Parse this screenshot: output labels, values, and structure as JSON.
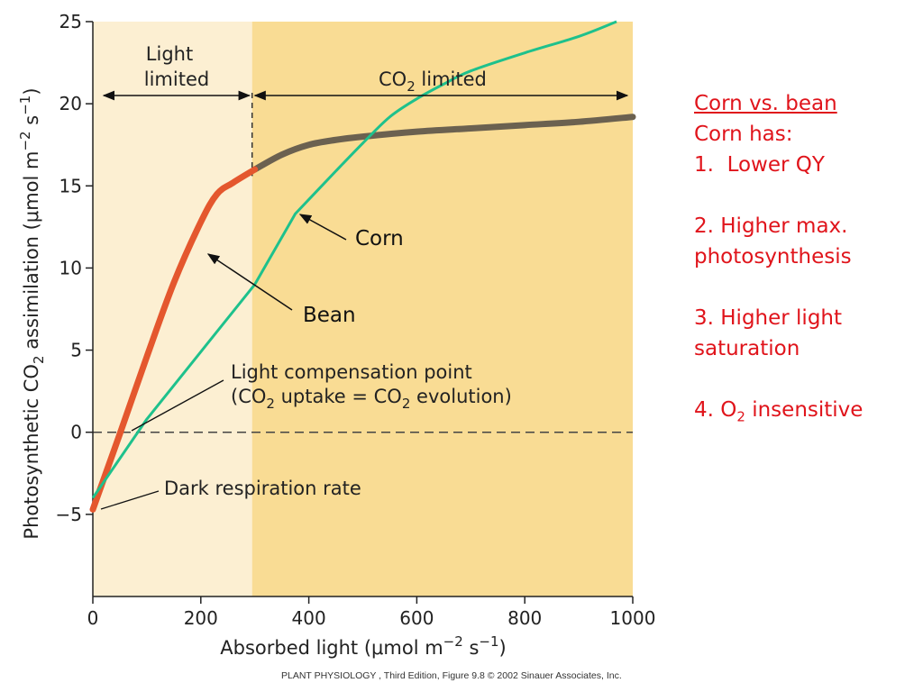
{
  "chart_data": {
    "type": "line",
    "xlabel": "Absorbed light (μmol m−2 s−1)",
    "ylabel": "Photosynthetic CO2 assimilation (μmol m−2 s−1)",
    "xlim": [
      0,
      1000
    ],
    "ylim": [
      -10,
      25
    ],
    "x_ticks": [
      "0",
      "200",
      "400",
      "600",
      "800",
      "1000"
    ],
    "y_ticks": [
      "25",
      "20",
      "15",
      "10",
      "5",
      "0",
      "−5"
    ],
    "series": [
      {
        "name": "Bean",
        "color": "#e4572e",
        "color_saturated": "#6b6150",
        "x": [
          0,
          50,
          100,
          150,
          200,
          230,
          260,
          300,
          350,
          400,
          450,
          500,
          600,
          700,
          800,
          900,
          1000
        ],
        "y": [
          -4.7,
          -0.1,
          4.6,
          9.1,
          12.8,
          14.5,
          15.2,
          16.0,
          16.9,
          17.5,
          17.8,
          18.0,
          18.3,
          18.5,
          18.7,
          18.9,
          19.2
        ]
      },
      {
        "name": "Corn",
        "color": "#1ec18c",
        "x": [
          0,
          100,
          200,
          300,
          375,
          450,
          500,
          550,
          600,
          650,
          700,
          800,
          900,
          970
        ],
        "y": [
          -4.0,
          0.8,
          4.9,
          9.0,
          13.3,
          15.9,
          17.6,
          19.2,
          20.3,
          21.2,
          22.0,
          23.1,
          24.1,
          25.0
        ]
      }
    ],
    "regions": [
      {
        "label": "Light limited",
        "x": [
          0,
          295
        ],
        "color": "#fcefd2"
      },
      {
        "label": "CO2 limited",
        "x": [
          295,
          1000
        ],
        "color": "#f9dc94"
      }
    ],
    "annotations": {
      "light_limited_line1": "Light",
      "light_limited_line2": "limited",
      "co2_limited_a": "CO",
      "co2_limited_sub": "2",
      "co2_limited_b": " limited",
      "corn_label": "Corn",
      "bean_label": "Bean",
      "lcp_line1": "Light compensation point",
      "lcp_a": "(CO",
      "lcp_sub1": "2",
      "lcp_b": " uptake = CO",
      "lcp_sub2": "2",
      "lcp_c": " evolution)",
      "dark_resp": "Dark respiration rate"
    },
    "grid": false
  },
  "axis_title": {
    "y_a": "Photosynthetic CO",
    "y_sub": "2",
    "y_b": " assimilation (μmol m",
    "y_sup1": "−2",
    "y_c": " s",
    "y_sup2": "−1",
    "y_d": ")",
    "x_a": "Absorbed light (μmol m",
    "x_sup1": "−2",
    "x_b": " s",
    "x_sup2": "−1",
    "x_c": ")"
  },
  "credit": "PLANT PHYSIOLOGY , Third Edition, Figure 9.8  © 2002 Sinauer Associates, Inc.",
  "notes": {
    "title": "Corn vs. bean",
    "line1": "Corn has:",
    "item1": "1.  Lower QY",
    "item2a": "2. Higher max.",
    "item2b": "photosynthesis",
    "item3a": "3. Higher light",
    "item3b": "saturation",
    "item4a": "4. O",
    "item4sub": "2",
    "item4b": " insensitive"
  }
}
